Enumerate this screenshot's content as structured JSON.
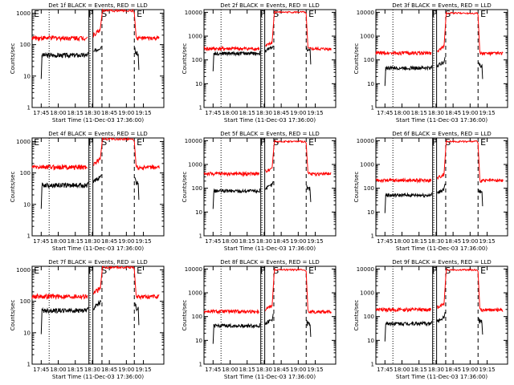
{
  "chart_data": [
    {
      "type": "line",
      "panel": "1",
      "title": "Det 1f BLACK = Events, RED = LLD",
      "xlabel": "Start Time (11-Dec-03 17:36:00)",
      "ylabel": "Counts/sec",
      "y_tick_labels": [
        "1",
        "10",
        "100",
        "1000"
      ],
      "ylim": [
        1,
        1300
      ],
      "yscale": "log",
      "x_tick_labels": [
        "17:45",
        "18:00",
        "18:15",
        "18:30",
        "18:45",
        "19:00",
        "19:15"
      ],
      "xlim_minutes": [
        -8,
        167
      ],
      "markers": [
        "E",
        "F",
        "S",
        "E"
      ],
      "series": [
        {
          "name": "Events",
          "color": "#000000",
          "level": 45,
          "rise": 40
        },
        {
          "name": "LLD",
          "color": "#ff0000",
          "level": 160,
          "rise": 1300
        }
      ]
    },
    {
      "type": "line",
      "panel": "2",
      "title": "Det 2f BLACK = Events, RED = LLD",
      "xlabel": "Start Time (11-Dec-03 17:36:00)",
      "ylabel": "Counts/sec",
      "y_tick_labels": [
        "1",
        "10",
        "100",
        "1000",
        "10000"
      ],
      "ylim": [
        1,
        13000
      ],
      "yscale": "log",
      "x_tick_labels": [
        "17:45",
        "18:00",
        "18:15",
        "18:30",
        "18:45",
        "19:00",
        "19:15"
      ],
      "xlim_minutes": [
        -8,
        167
      ],
      "markers": [
        "F",
        "S",
        "E"
      ],
      "series": [
        {
          "name": "Events",
          "color": "#000000",
          "level": 185,
          "rise": 180
        },
        {
          "name": "LLD",
          "color": "#ff0000",
          "level": 290,
          "rise": 11000
        }
      ]
    },
    {
      "type": "line",
      "panel": "3",
      "title": "Det 3f BLACK = Events, RED = LLD",
      "xlabel": "Start Time (11-Dec-03 17:36:00)",
      "ylabel": "Counts/sec",
      "y_tick_labels": [
        "1",
        "10",
        "100",
        "1000",
        "10000"
      ],
      "ylim": [
        1,
        13000
      ],
      "yscale": "log",
      "x_tick_labels": [
        "17:45",
        "18:00",
        "18:15",
        "18:30",
        "18:45",
        "19:00",
        "19:15"
      ],
      "xlim_minutes": [
        -8,
        167
      ],
      "markers": [
        "F",
        "S",
        "E"
      ],
      "series": [
        {
          "name": "Events",
          "color": "#000000",
          "level": 45,
          "rise": 60
        },
        {
          "name": "LLD",
          "color": "#ff0000",
          "level": 190,
          "rise": 10000
        }
      ]
    },
    {
      "type": "line",
      "panel": "4",
      "title": "Det 4f BLACK = Events, RED = LLD",
      "xlabel": "Start Time (11-Dec-03 17:36:00)",
      "ylabel": "Counts/sec",
      "y_tick_labels": [
        "1",
        "10",
        "100",
        "1000"
      ],
      "ylim": [
        1,
        1300
      ],
      "yscale": "log",
      "x_tick_labels": [
        "17:45",
        "18:00",
        "18:15",
        "18:30",
        "18:45",
        "19:00",
        "19:15"
      ],
      "xlim_minutes": [
        -8,
        167
      ],
      "markers": [
        "E",
        "F",
        "S",
        "E"
      ],
      "series": [
        {
          "name": "Events",
          "color": "#000000",
          "level": 40,
          "rise": 40
        },
        {
          "name": "LLD",
          "color": "#ff0000",
          "level": 150,
          "rise": 1300
        }
      ]
    },
    {
      "type": "line",
      "panel": "5",
      "title": "Det 5f BLACK = Events, RED = LLD",
      "xlabel": "Start Time (11-Dec-03 17:36:00)",
      "ylabel": "Counts/sec",
      "y_tick_labels": [
        "1",
        "10",
        "100",
        "1000",
        "10000"
      ],
      "ylim": [
        1,
        13000
      ],
      "yscale": "log",
      "x_tick_labels": [
        "17:45",
        "18:00",
        "18:15",
        "18:30",
        "18:45",
        "19:00",
        "19:15"
      ],
      "xlim_minutes": [
        -8,
        167
      ],
      "markers": [
        "F",
        "S",
        "E"
      ],
      "series": [
        {
          "name": "Events",
          "color": "#000000",
          "level": 75,
          "rise": 90
        },
        {
          "name": "LLD",
          "color": "#ff0000",
          "level": 400,
          "rise": 10000
        }
      ]
    },
    {
      "type": "line",
      "panel": "6",
      "title": "Det 6f BLACK = Events, RED = LLD",
      "xlabel": "Start Time (11-Dec-03 17:36:00)",
      "ylabel": "Counts/sec",
      "y_tick_labels": [
        "1",
        "10",
        "100",
        "1000",
        "10000"
      ],
      "ylim": [
        1,
        13000
      ],
      "yscale": "log",
      "x_tick_labels": [
        "17:45",
        "18:00",
        "18:15",
        "18:30",
        "18:45",
        "19:00",
        "19:15"
      ],
      "xlim_minutes": [
        -8,
        167
      ],
      "markers": [
        "F",
        "S",
        "E"
      ],
      "series": [
        {
          "name": "Events",
          "color": "#000000",
          "level": 50,
          "rise": 70
        },
        {
          "name": "LLD",
          "color": "#ff0000",
          "level": 210,
          "rise": 10000
        }
      ]
    },
    {
      "type": "line",
      "panel": "7",
      "title": "Det 7f BLACK = Events, RED = LLD",
      "xlabel": "Start Time (11-Dec-03 17:36:00)",
      "ylabel": "Counts/sec",
      "y_tick_labels": [
        "1",
        "10",
        "100",
        "1000"
      ],
      "ylim": [
        1,
        1300
      ],
      "yscale": "log",
      "x_tick_labels": [
        "17:45",
        "18:00",
        "18:15",
        "18:30",
        "18:45",
        "19:00",
        "19:15"
      ],
      "xlim_minutes": [
        -8,
        167
      ],
      "markers": [
        "E",
        "F",
        "S",
        "E"
      ],
      "series": [
        {
          "name": "Events",
          "color": "#000000",
          "level": 50,
          "rise": 45
        },
        {
          "name": "LLD",
          "color": "#ff0000",
          "level": 140,
          "rise": 1300
        }
      ]
    },
    {
      "type": "line",
      "panel": "8",
      "title": "Det 8f BLACK = Events, RED = LLD",
      "xlabel": "Start Time (11-Dec-03 17:36:00)",
      "ylabel": "Counts/sec",
      "y_tick_labels": [
        "1",
        "10",
        "100",
        "1000",
        "10000"
      ],
      "ylim": [
        1,
        13000
      ],
      "yscale": "log",
      "x_tick_labels": [
        "17:45",
        "18:00",
        "18:15",
        "18:30",
        "18:45",
        "19:00",
        "19:15"
      ],
      "xlim_minutes": [
        -8,
        167
      ],
      "markers": [
        "F",
        "S",
        "E"
      ],
      "series": [
        {
          "name": "Events",
          "color": "#000000",
          "level": 40,
          "rise": 60
        },
        {
          "name": "LLD",
          "color": "#ff0000",
          "level": 160,
          "rise": 10000
        }
      ]
    },
    {
      "type": "line",
      "panel": "9",
      "title": "Det 9f BLACK = Events, RED = LLD",
      "xlabel": "Start Time (11-Dec-03 17:36:00)",
      "ylabel": "Counts/sec",
      "y_tick_labels": [
        "1",
        "10",
        "100",
        "1000",
        "10000"
      ],
      "ylim": [
        1,
        13000
      ],
      "yscale": "log",
      "x_tick_labels": [
        "17:45",
        "18:00",
        "18:15",
        "18:30",
        "18:45",
        "19:00",
        "19:15"
      ],
      "xlim_minutes": [
        -8,
        167
      ],
      "markers": [
        "F",
        "S",
        "E"
      ],
      "series": [
        {
          "name": "Events",
          "color": "#000000",
          "level": 50,
          "rise": 70
        },
        {
          "name": "LLD",
          "color": "#ff0000",
          "level": 190,
          "rise": 10000
        }
      ]
    }
  ]
}
